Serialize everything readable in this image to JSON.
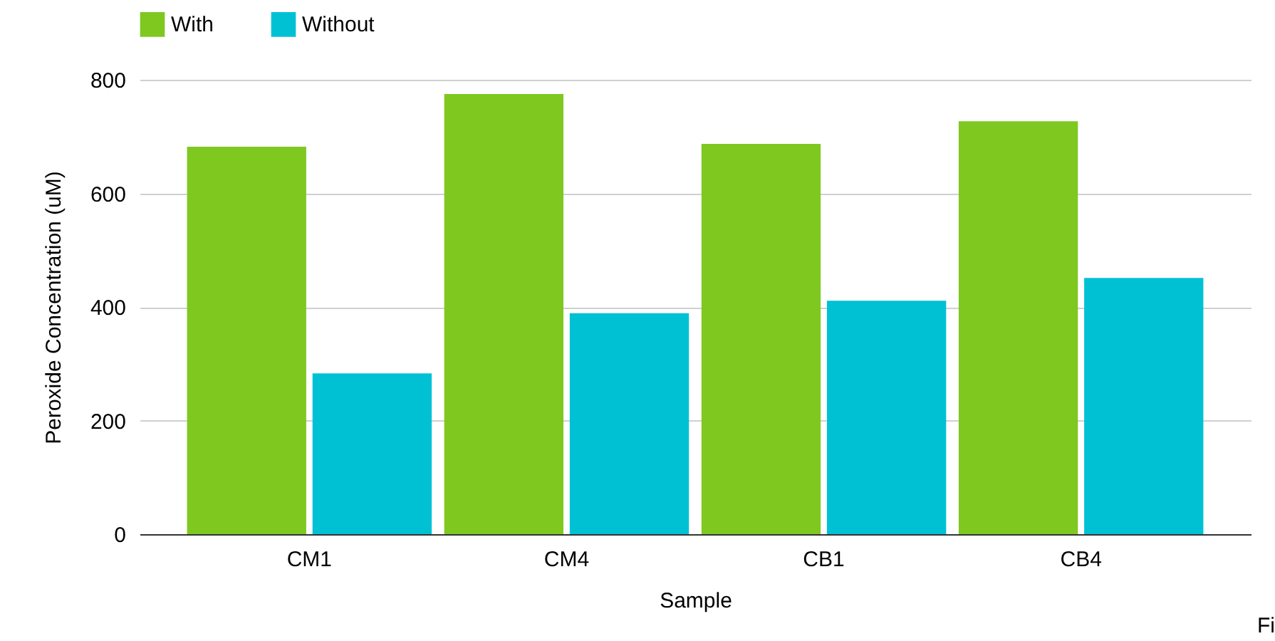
{
  "chart_data": {
    "type": "bar",
    "xlabel": "Sample",
    "ylabel": "Peroxide Concentration (uM)",
    "categories": [
      "CM1",
      "CM4",
      "CB1",
      "CB4"
    ],
    "series": [
      {
        "name": "With",
        "color": "#7ec820",
        "values": [
          682,
          775,
          687,
          727
        ]
      },
      {
        "name": "Without",
        "color": "#00c1d4",
        "values": [
          283,
          389,
          411,
          451
        ]
      }
    ],
    "ylim": [
      0,
      800
    ],
    "yticks": [
      0,
      200,
      400,
      600,
      800
    ],
    "grid": "y",
    "legend": "top",
    "annotations": [
      "Fi"
    ]
  }
}
